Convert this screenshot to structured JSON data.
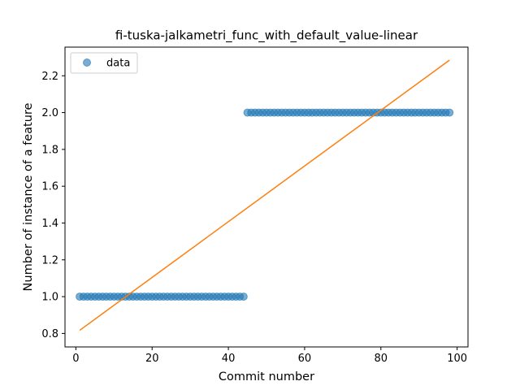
{
  "chart_data": {
    "type": "scatter",
    "title": "fi-tuska-jalkametri_func_with_default_value-linear",
    "xlabel": "Commit number",
    "ylabel": "Number of instance of a feature",
    "xlim": [
      -2.85,
      102.85
    ],
    "ylim": [
      0.7267,
      2.3557
    ],
    "xticks": [
      0,
      20,
      40,
      60,
      80,
      100
    ],
    "yticks": [
      0.8,
      1.0,
      1.2,
      1.4,
      1.6,
      1.8,
      2.0,
      2.2
    ],
    "xtick_labels": [
      "0",
      "20",
      "40",
      "60",
      "80",
      "100"
    ],
    "ytick_labels": [
      "0.8",
      "1.0",
      "1.2",
      "1.4",
      "1.6",
      "1.8",
      "2.0",
      "2.2"
    ],
    "legend": {
      "position": "upper-left",
      "entries": [
        "data"
      ]
    },
    "grid": false,
    "series": [
      {
        "name": "data",
        "kind": "scatter",
        "color": "#1f77b4",
        "alpha": 0.6,
        "segments": [
          {
            "x_start": 1,
            "x_end": 44,
            "y": 1
          },
          {
            "x_start": 45,
            "x_end": 98,
            "y": 2
          }
        ]
      },
      {
        "kind": "line",
        "color": "#ff7f0e",
        "x": [
          1,
          98
        ],
        "y": [
          0.817,
          2.285
        ]
      }
    ]
  }
}
